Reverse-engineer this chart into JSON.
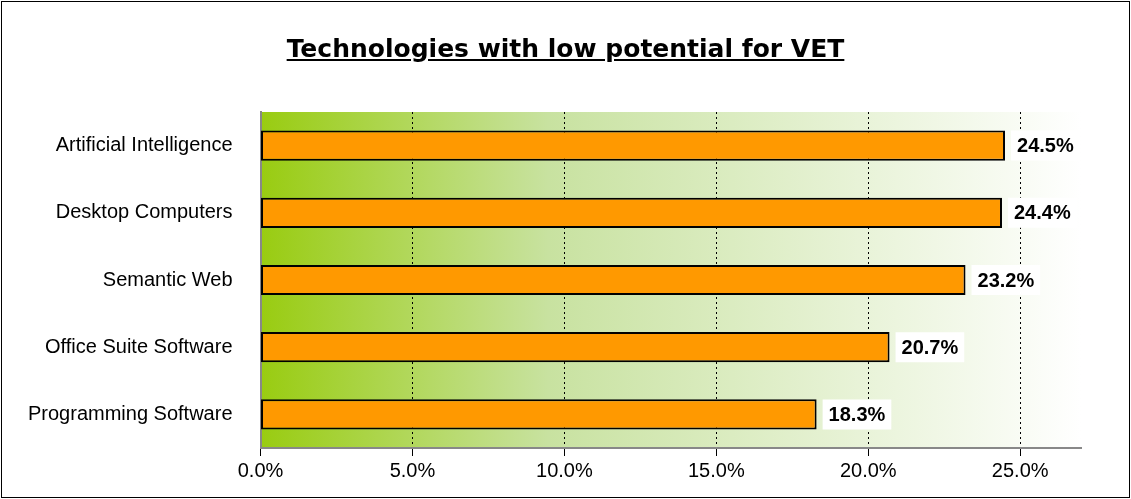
{
  "chart_data": {
    "type": "bar",
    "orientation": "horizontal",
    "title": "Technologies with low potential for VET",
    "categories": [
      "Artificial Intelligence",
      "Desktop Computers",
      "Semantic Web",
      "Office Suite Software",
      "Programming Software"
    ],
    "values": [
      24.5,
      24.4,
      23.2,
      20.7,
      18.3
    ],
    "value_labels": [
      "24.5%",
      "24.4%",
      "23.2%",
      "20.7%",
      "18.3%"
    ],
    "color": "#ff9900",
    "xlim": [
      0,
      27
    ],
    "xticks": [
      {
        "value": 0,
        "label": "0.0%"
      },
      {
        "value": 5,
        "label": "5.0%"
      },
      {
        "value": 10,
        "label": "10.0%"
      },
      {
        "value": 15,
        "label": "15.0%"
      },
      {
        "value": 20,
        "label": "20.0%"
      },
      {
        "value": 25,
        "label": "25.0%"
      }
    ],
    "grid": "x",
    "legend": false
  }
}
